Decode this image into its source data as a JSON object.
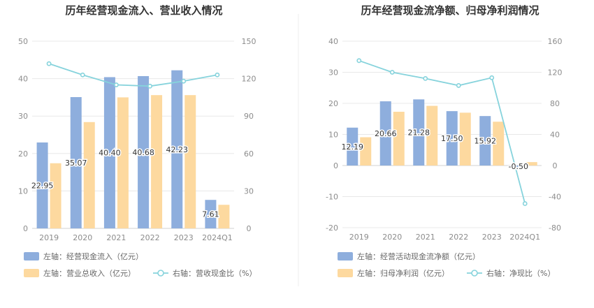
{
  "colors": {
    "bar_primary": "#8eaedd",
    "bar_secondary": "#fdd99f",
    "line": "#86d3dc",
    "grid": "#e8e8e8",
    "axis_text": "#8c8c8c",
    "title": "#333333",
    "legend_text": "#666666",
    "divider": "#ececec"
  },
  "chart_data": [
    {
      "type": "bar",
      "title": "历年经营现金流入、营业收入情况",
      "categories": [
        "2019",
        "2020",
        "2021",
        "2022",
        "2023",
        "2024Q1"
      ],
      "left_axis": {
        "ylim": [
          0,
          50
        ],
        "ticks": [
          0,
          10,
          20,
          30,
          40,
          50
        ]
      },
      "right_axis": {
        "ylim": [
          0,
          150
        ],
        "ticks": [
          0,
          30,
          60,
          90,
          120,
          150
        ]
      },
      "series": [
        {
          "name": "左轴：经营现金流入（亿元）",
          "type": "bar",
          "axis": "left",
          "values": [
            22.95,
            35.07,
            40.4,
            40.68,
            42.23,
            7.61
          ],
          "labels": [
            "22.95",
            "35.07",
            "40.40",
            "40.68",
            "42.23",
            "7.61"
          ]
        },
        {
          "name": "左轴：营业总收入（亿元）",
          "type": "bar",
          "axis": "left",
          "values": [
            17.4,
            28.4,
            35.0,
            35.6,
            35.6,
            6.3
          ]
        },
        {
          "name": "右轴：营收现金比（%）",
          "type": "line",
          "axis": "right",
          "values": [
            132,
            123,
            115,
            114,
            118,
            123
          ]
        }
      ],
      "grid": true,
      "legend_position": "bottom"
    },
    {
      "type": "bar",
      "title": "历年经营现金流净额、归母净利润情况",
      "categories": [
        "2019",
        "2020",
        "2021",
        "2022",
        "2023",
        "2024Q1"
      ],
      "left_axis": {
        "ylim": [
          -20,
          40
        ],
        "ticks": [
          -20,
          -10,
          0,
          10,
          20,
          30,
          40
        ]
      },
      "right_axis": {
        "ylim": [
          -80,
          160
        ],
        "ticks": [
          -80,
          -40,
          0,
          40,
          80,
          120,
          160
        ]
      },
      "series": [
        {
          "name": "左轴：经营活动现金流净额（亿元）",
          "type": "bar",
          "axis": "left",
          "values": [
            12.19,
            20.66,
            21.28,
            17.5,
            15.92,
            -0.5
          ],
          "labels": [
            "12.19",
            "20.66",
            "21.28",
            "17.50",
            "15.92",
            "-0.50"
          ]
        },
        {
          "name": "左轴：归母净利润（亿元）",
          "type": "bar",
          "axis": "left",
          "values": [
            9.1,
            17.3,
            19.2,
            17.0,
            14.1,
            1.1
          ]
        },
        {
          "name": "右轴：净现比（%）",
          "type": "line",
          "axis": "right",
          "values": [
            135,
            120,
            112,
            103,
            113,
            -49
          ]
        }
      ],
      "grid": true,
      "legend_position": "bottom"
    }
  ]
}
